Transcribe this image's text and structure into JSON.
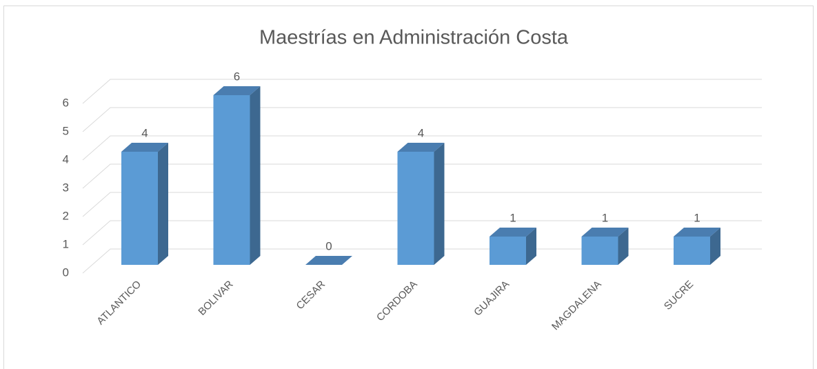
{
  "chart_data": {
    "type": "bar3d",
    "title": "Maestrías en Administración Costa",
    "categories": [
      "ATLANTICO",
      "BOLIVAR",
      "CESAR",
      "CORDOBA",
      "GUAJIRA",
      "MAGDALENA",
      "SUCRE"
    ],
    "values": [
      4,
      6,
      0,
      4,
      1,
      1,
      1
    ],
    "color": "#5b9bd5",
    "ylim": [
      0,
      6
    ],
    "yticks": [
      0,
      1,
      2,
      3,
      4,
      5,
      6
    ],
    "grid": true
  }
}
